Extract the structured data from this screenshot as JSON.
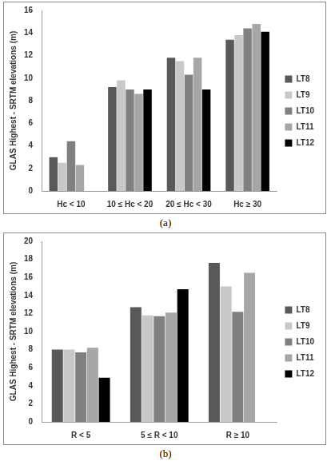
{
  "chart_data": [
    {
      "type": "bar",
      "y_label": "GLAS Highest - SRTM elevations (m)",
      "caption": "(a)",
      "categories": [
        "Hc < 10",
        "10 ≤ Hc < 20",
        "20 ≤ Hc < 30",
        "Hc ≥ 30"
      ],
      "series": [
        {
          "name": "LT8",
          "color": "#595959",
          "values": [
            3.0,
            9.2,
            11.8,
            13.4
          ]
        },
        {
          "name": "LT9",
          "color": "#c8c8c8",
          "values": [
            2.5,
            9.8,
            11.5,
            13.8
          ]
        },
        {
          "name": "LT10",
          "color": "#808080",
          "values": [
            4.4,
            9.0,
            10.3,
            14.4
          ]
        },
        {
          "name": "LT11",
          "color": "#a6a6a6",
          "values": [
            2.3,
            8.6,
            11.8,
            14.8
          ]
        },
        {
          "name": "LT12",
          "color": "#000000",
          "values": [
            null,
            9.0,
            9.0,
            14.1
          ]
        }
      ],
      "ylim": [
        0,
        16
      ],
      "yticks": [
        0,
        2,
        4,
        6,
        8,
        10,
        12,
        14,
        16
      ],
      "grid": false,
      "legend": "right"
    },
    {
      "type": "bar",
      "y_label": "GLAS Highest - SRTM elevations (m)",
      "caption": "(b)",
      "categories": [
        "R < 5",
        "5 ≤ R < 10",
        "R ≥ 10"
      ],
      "series": [
        {
          "name": "LT8",
          "color": "#595959",
          "values": [
            8.0,
            12.7,
            17.6
          ]
        },
        {
          "name": "LT9",
          "color": "#c8c8c8",
          "values": [
            8.0,
            11.8,
            15.0
          ]
        },
        {
          "name": "LT10",
          "color": "#808080",
          "values": [
            7.7,
            11.7,
            12.2
          ]
        },
        {
          "name": "LT11",
          "color": "#a6a6a6",
          "values": [
            8.2,
            12.1,
            16.5
          ]
        },
        {
          "name": "LT12",
          "color": "#000000",
          "values": [
            4.9,
            14.7,
            null
          ]
        }
      ],
      "ylim": [
        0,
        20
      ],
      "yticks": [
        0,
        2,
        4,
        6,
        8,
        10,
        12,
        14,
        16,
        18,
        20
      ],
      "grid": false,
      "legend": "right"
    }
  ]
}
